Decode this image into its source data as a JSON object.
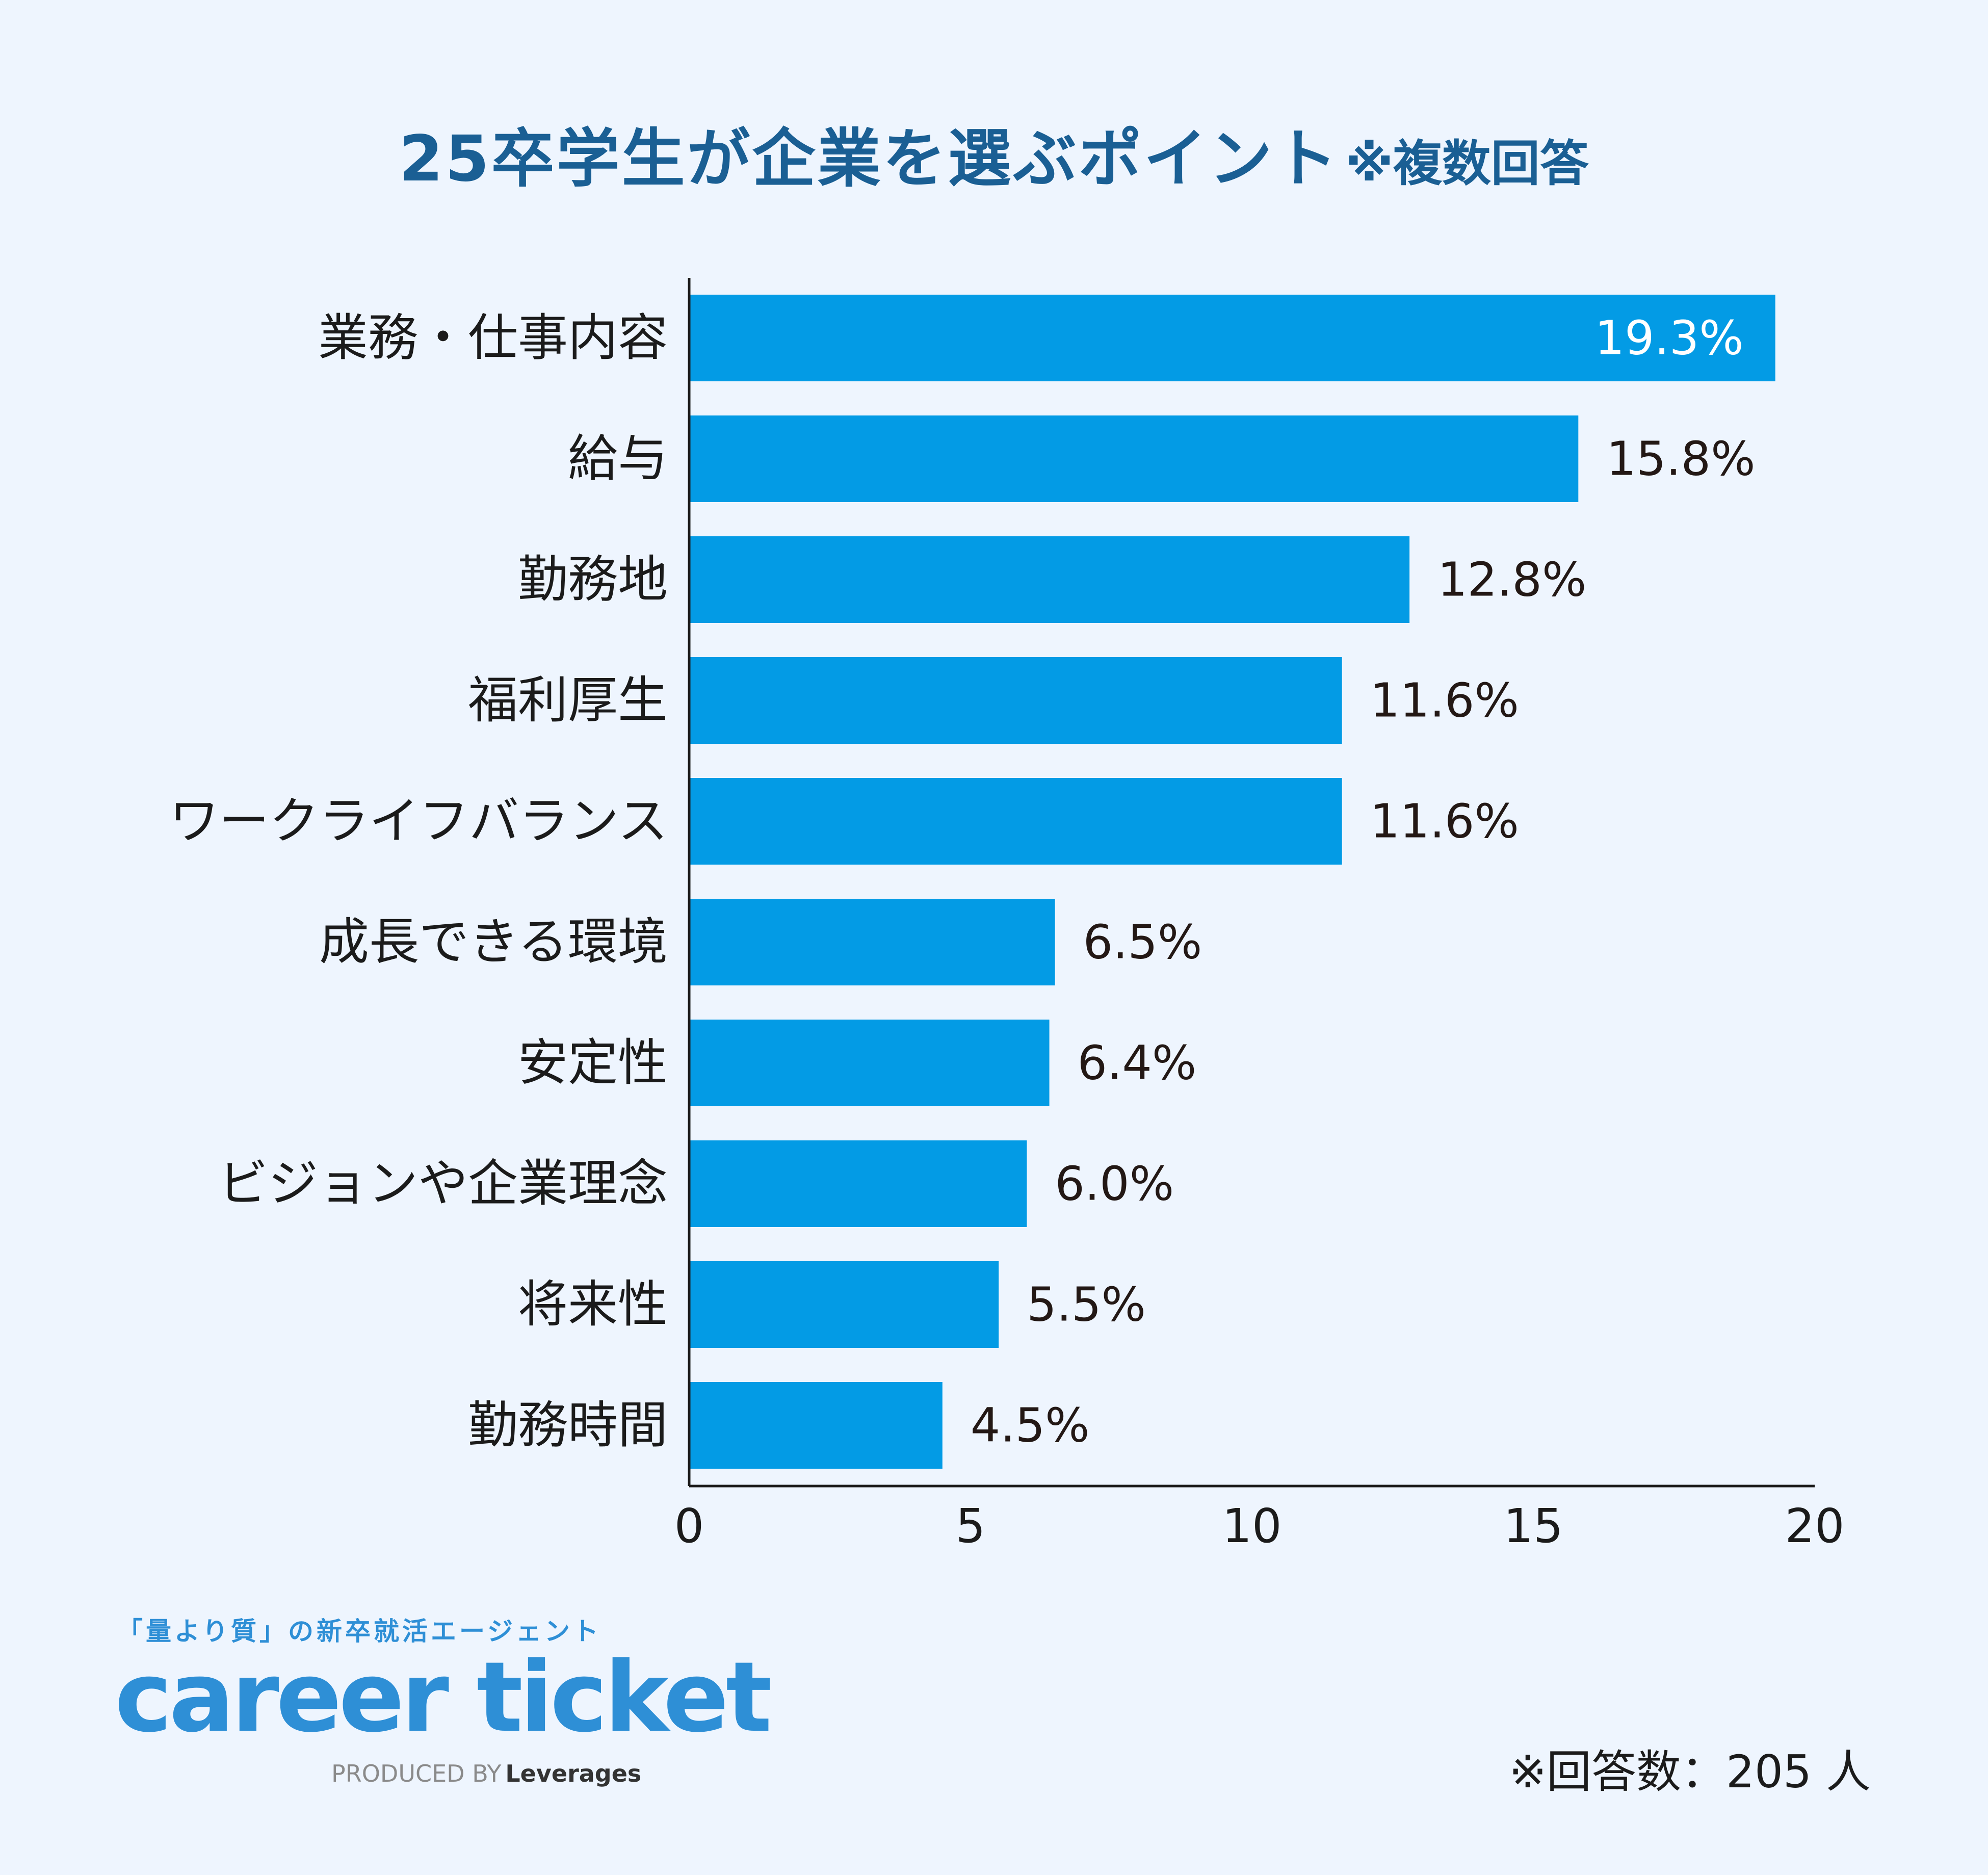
{
  "title": {
    "main": "25卒学生が企業を選ぶポイント",
    "note": "※複数回答"
  },
  "chart_data": {
    "type": "bar",
    "orientation": "horizontal",
    "categories": [
      "業務・仕事内容",
      "給与",
      "勤務地",
      "福利厚生",
      "ワークライフバランス",
      "成長できる環境",
      "安定性",
      "ビジョンや企業理念",
      "将来性",
      "勤務時間"
    ],
    "values": [
      19.3,
      15.8,
      12.8,
      11.6,
      11.6,
      6.5,
      6.4,
      6.0,
      5.5,
      4.5
    ],
    "value_labels": [
      "19.3%",
      "15.8%",
      "12.8%",
      "11.6%",
      "11.6%",
      "6.5%",
      "6.4%",
      "6.0%",
      "5.5%",
      "4.5%"
    ],
    "xlim": [
      0,
      20
    ],
    "xticks": [
      "0",
      "5",
      "10",
      "15",
      "20"
    ],
    "bar_color": "#039be5",
    "grid": false
  },
  "brand": {
    "tagline": "「量より質」の新卒就活エージェント",
    "logo": "career ticket",
    "produced_by": "PRODUCED BY",
    "company": "Leverages"
  },
  "footnote": "※回答数：205 人"
}
